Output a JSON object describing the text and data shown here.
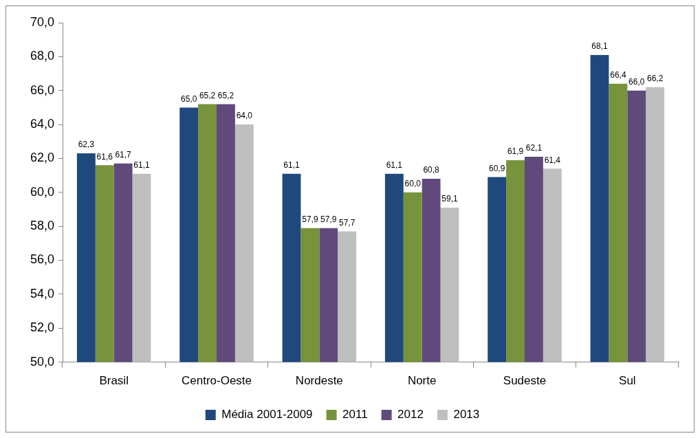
{
  "chart_data": {
    "type": "bar",
    "categories": [
      "Brasil",
      "Centro-Oeste",
      "Nordeste",
      "Norte",
      "Sudeste",
      "Sul"
    ],
    "series": [
      {
        "name": "Média 2001-2009",
        "color": "#1f497d",
        "values": [
          62.3,
          65.0,
          61.1,
          61.1,
          60.9,
          68.1
        ],
        "value_labels": [
          "62,3",
          "65,0",
          "61,1",
          "61,1",
          "60,9",
          "68,1"
        ]
      },
      {
        "name": "2011",
        "color": "#77933c",
        "values": [
          61.6,
          65.2,
          57.9,
          60.0,
          61.9,
          66.4
        ],
        "value_labels": [
          "61,6",
          "65,2",
          "57,9",
          "60,0",
          "61,9",
          "66,4"
        ]
      },
      {
        "name": "2012",
        "color": "#604a7b",
        "values": [
          61.7,
          65.2,
          57.9,
          60.8,
          62.1,
          66.0
        ],
        "value_labels": [
          "61,7",
          "65,2",
          "57,9",
          "60,8",
          "62,1",
          "66,0"
        ]
      },
      {
        "name": "2013",
        "color": "#bfbfbf",
        "values": [
          61.1,
          64.0,
          57.7,
          59.1,
          61.4,
          66.2
        ],
        "value_labels": [
          "61,1",
          "64,0",
          "57,7",
          "59,1",
          "61,4",
          "66,2"
        ]
      }
    ],
    "ylim": [
      50,
      70
    ],
    "yticks": [
      {
        "value": 50,
        "label": "50,0"
      },
      {
        "value": 52,
        "label": "52,0"
      },
      {
        "value": 54,
        "label": "54,0"
      },
      {
        "value": 56,
        "label": "56,0"
      },
      {
        "value": 58,
        "label": "58,0"
      },
      {
        "value": 60,
        "label": "60,0"
      },
      {
        "value": 62,
        "label": "62,0"
      },
      {
        "value": 64,
        "label": "64,0"
      },
      {
        "value": 66,
        "label": "66,0"
      },
      {
        "value": 68,
        "label": "68,0"
      },
      {
        "value": 70,
        "label": "70,0"
      }
    ],
    "legend": "bottom",
    "grid": false
  }
}
